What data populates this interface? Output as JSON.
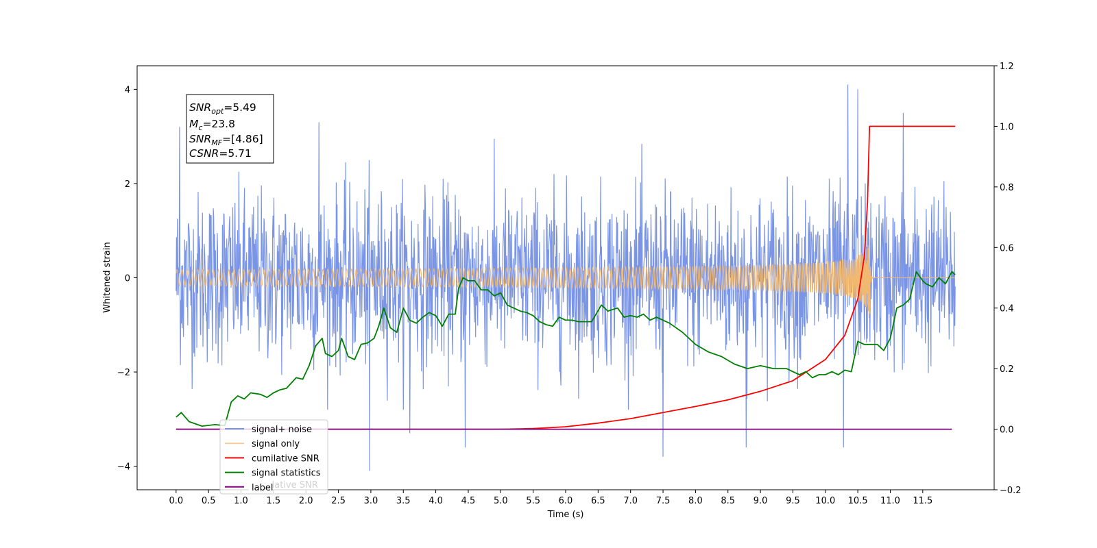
{
  "chart_data": {
    "type": "line",
    "xlabel": "Time (s)",
    "ylabel": "Whitened strain",
    "xlim": [
      -0.6,
      12.6
    ],
    "ylim_left": [
      -4.5,
      4.5
    ],
    "ylim_right": [
      -0.2,
      1.2
    ],
    "x_ticks": [
      "0.0",
      "0.5",
      "1.0",
      "1.5",
      "2.0",
      "2.5",
      "3.0",
      "3.5",
      "4.0",
      "4.5",
      "5.0",
      "5.5",
      "6.0",
      "6.5",
      "7.0",
      "7.5",
      "8.0",
      "8.5",
      "9.0",
      "9.5",
      "10.0",
      "10.5",
      "11.0",
      "11.5"
    ],
    "y_ticks_left": [
      "4",
      "2",
      "0",
      "−2",
      "−4"
    ],
    "y_ticks_right": [
      "1.2",
      "1.0",
      "0.8",
      "0.6",
      "0.4",
      "0.2",
      "0.0",
      "−0.2"
    ],
    "info_box": {
      "snr_opt": {
        "main": "SNR",
        "sub": "opt",
        "value": "=5.49"
      },
      "mc": {
        "main": "M",
        "sub": "c",
        "value": "=23.8"
      },
      "snr_mf": {
        "main": "SNR",
        "sub": "MF",
        "value": "=[4.86]"
      },
      "csnr": {
        "main": "CSNR",
        "sub": "",
        "value": "=5.71"
      }
    },
    "legend": {
      "placement": "lower-left",
      "entries": [
        "signal+ noise",
        "signal only",
        "cumilative SNR",
        "signal statistics",
        "label"
      ],
      "hidden_text": "cumilative SNR"
    },
    "colors": {
      "noise": "#7b95e6",
      "signal": "#f0b870",
      "cumulative": "#ff0000",
      "statistics": "#008000",
      "label": "#800080"
    },
    "series": [
      {
        "name": "signal+ noise",
        "axis": "left",
        "description_envelope": {
          "x_start": 0.0,
          "x_end": 12.0,
          "typical_range": [
            -2.2,
            2.4
          ]
        },
        "spikes": [
          {
            "x": 2.2,
            "y": 3.3
          },
          {
            "x": 2.98,
            "y": -4.1
          },
          {
            "x": 3.6,
            "y": -3.3
          },
          {
            "x": 4.45,
            "y": 3.8
          },
          {
            "x": 4.45,
            "y": -3.6
          },
          {
            "x": 7.5,
            "y": -3.8
          },
          {
            "x": 8.78,
            "y": -3.6
          },
          {
            "x": 10.28,
            "y": -3.6
          },
          {
            "x": 10.35,
            "y": 4.1
          },
          {
            "x": 10.5,
            "y": 4.0
          },
          {
            "x": 11.2,
            "y": 3.5
          },
          {
            "x": 0.05,
            "y": 3.2
          }
        ]
      },
      {
        "name": "signal only",
        "axis": "left",
        "chirp": {
          "x_start": 0.0,
          "x_merge": 10.68,
          "x_end": 12.0,
          "peak_amplitude": 1.2
        }
      },
      {
        "name": "cumilative SNR",
        "axis": "right",
        "x": [
          0.0,
          4.5,
          5.0,
          5.5,
          6.0,
          6.5,
          7.0,
          7.5,
          8.0,
          8.5,
          9.0,
          9.5,
          10.0,
          10.3,
          10.5,
          10.6,
          10.65,
          10.68,
          10.7,
          12.0
        ],
        "y": [
          0.0,
          0.0,
          0.0,
          0.002,
          0.008,
          0.02,
          0.035,
          0.055,
          0.075,
          0.097,
          0.125,
          0.16,
          0.23,
          0.31,
          0.43,
          0.57,
          0.75,
          1.0,
          1.0,
          1.0
        ]
      },
      {
        "name": "signal statistics",
        "axis": "right",
        "x": [
          0.0,
          0.08,
          0.2,
          0.4,
          0.6,
          0.75,
          0.85,
          0.95,
          1.05,
          1.15,
          1.3,
          1.4,
          1.5,
          1.6,
          1.7,
          1.85,
          1.95,
          2.05,
          2.15,
          2.25,
          2.3,
          2.4,
          2.5,
          2.55,
          2.65,
          2.75,
          2.85,
          2.95,
          3.05,
          3.12,
          3.2,
          3.3,
          3.4,
          3.5,
          3.6,
          3.7,
          3.8,
          3.9,
          4.0,
          4.1,
          4.2,
          4.3,
          4.35,
          4.42,
          4.5,
          4.6,
          4.7,
          4.8,
          4.9,
          5.0,
          5.1,
          5.2,
          5.3,
          5.4,
          5.5,
          5.6,
          5.7,
          5.8,
          5.9,
          6.0,
          6.1,
          6.2,
          6.3,
          6.4,
          6.55,
          6.65,
          6.8,
          6.9,
          7.0,
          7.1,
          7.2,
          7.3,
          7.4,
          7.5,
          7.6,
          7.8,
          7.9,
          8.0,
          8.2,
          8.4,
          8.6,
          8.8,
          9.0,
          9.2,
          9.4,
          9.6,
          9.7,
          9.8,
          9.9,
          10.0,
          10.1,
          10.2,
          10.3,
          10.4,
          10.5,
          10.6,
          10.7,
          10.8,
          10.9,
          11.0,
          11.1,
          11.2,
          11.3,
          11.4,
          11.5,
          11.55,
          11.65,
          11.75,
          11.85,
          11.95,
          12.0
        ],
        "y": [
          0.04,
          0.055,
          0.025,
          0.01,
          0.015,
          0.012,
          0.09,
          0.11,
          0.1,
          0.12,
          0.115,
          0.105,
          0.12,
          0.13,
          0.135,
          0.17,
          0.165,
          0.21,
          0.275,
          0.3,
          0.25,
          0.24,
          0.26,
          0.3,
          0.24,
          0.23,
          0.28,
          0.285,
          0.3,
          0.34,
          0.4,
          0.335,
          0.32,
          0.4,
          0.36,
          0.35,
          0.37,
          0.385,
          0.375,
          0.34,
          0.38,
          0.38,
          0.465,
          0.5,
          0.49,
          0.49,
          0.46,
          0.46,
          0.44,
          0.45,
          0.41,
          0.4,
          0.39,
          0.385,
          0.375,
          0.355,
          0.345,
          0.34,
          0.37,
          0.36,
          0.36,
          0.355,
          0.355,
          0.355,
          0.41,
          0.39,
          0.4,
          0.37,
          0.375,
          0.37,
          0.38,
          0.36,
          0.37,
          0.36,
          0.35,
          0.32,
          0.3,
          0.28,
          0.255,
          0.24,
          0.215,
          0.2,
          0.21,
          0.2,
          0.2,
          0.18,
          0.19,
          0.17,
          0.18,
          0.18,
          0.19,
          0.18,
          0.195,
          0.19,
          0.29,
          0.28,
          0.28,
          0.28,
          0.26,
          0.3,
          0.4,
          0.41,
          0.43,
          0.52,
          0.49,
          0.48,
          0.47,
          0.5,
          0.48,
          0.52,
          0.51
        ]
      },
      {
        "name": "label",
        "axis": "right",
        "x": [
          0.0,
          11.95
        ],
        "y": [
          0.0,
          0.0
        ]
      }
    ]
  }
}
